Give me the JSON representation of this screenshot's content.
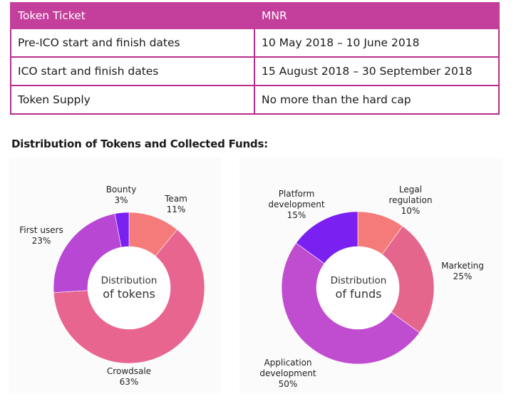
{
  "table": {
    "header": [
      "Token Ticket",
      "MNR"
    ],
    "rows": [
      [
        "Pre-ICO start and finish dates",
        "10 May 2018 – 10 June 2018"
      ],
      [
        "ICO start and finish dates",
        "15 August 2018 – 30 September 2018"
      ],
      [
        "Token Supply",
        "No more than the hard cap"
      ]
    ]
  },
  "section_title": "Distribution of Tokens and Collected Funds:",
  "chart_data": [
    {
      "type": "pie",
      "donut": true,
      "center_label": [
        "Distribution",
        "of tokens"
      ],
      "slices": [
        {
          "name": "Team",
          "value": 11,
          "pct": "11%",
          "color": "#f47b7a"
        },
        {
          "name": "Crowdsale",
          "value": 63,
          "pct": "63%",
          "color": "#e8658f"
        },
        {
          "name": "First users",
          "value": 23,
          "pct": "23%",
          "color": "#b848d4"
        },
        {
          "name": "Bounty",
          "value": 3,
          "pct": "3%",
          "color": "#7a20f0"
        }
      ]
    },
    {
      "type": "pie",
      "donut": true,
      "center_label": [
        "Distribution",
        "of funds"
      ],
      "slices": [
        {
          "name": "Legal regulation",
          "label_lines": [
            "Legal",
            "regulation"
          ],
          "value": 10,
          "pct": "10%",
          "color": "#f47b7a"
        },
        {
          "name": "Marketing",
          "value": 25,
          "pct": "25%",
          "color": "#e4668d"
        },
        {
          "name": "Application development",
          "label_lines": [
            "Application",
            "development"
          ],
          "value": 50,
          "pct": "50%",
          "color": "#c04cd0"
        },
        {
          "name": "Platform development",
          "label_lines": [
            "Platform",
            "development"
          ],
          "value": 15,
          "pct": "15%",
          "color": "#7a20f0"
        }
      ]
    }
  ]
}
